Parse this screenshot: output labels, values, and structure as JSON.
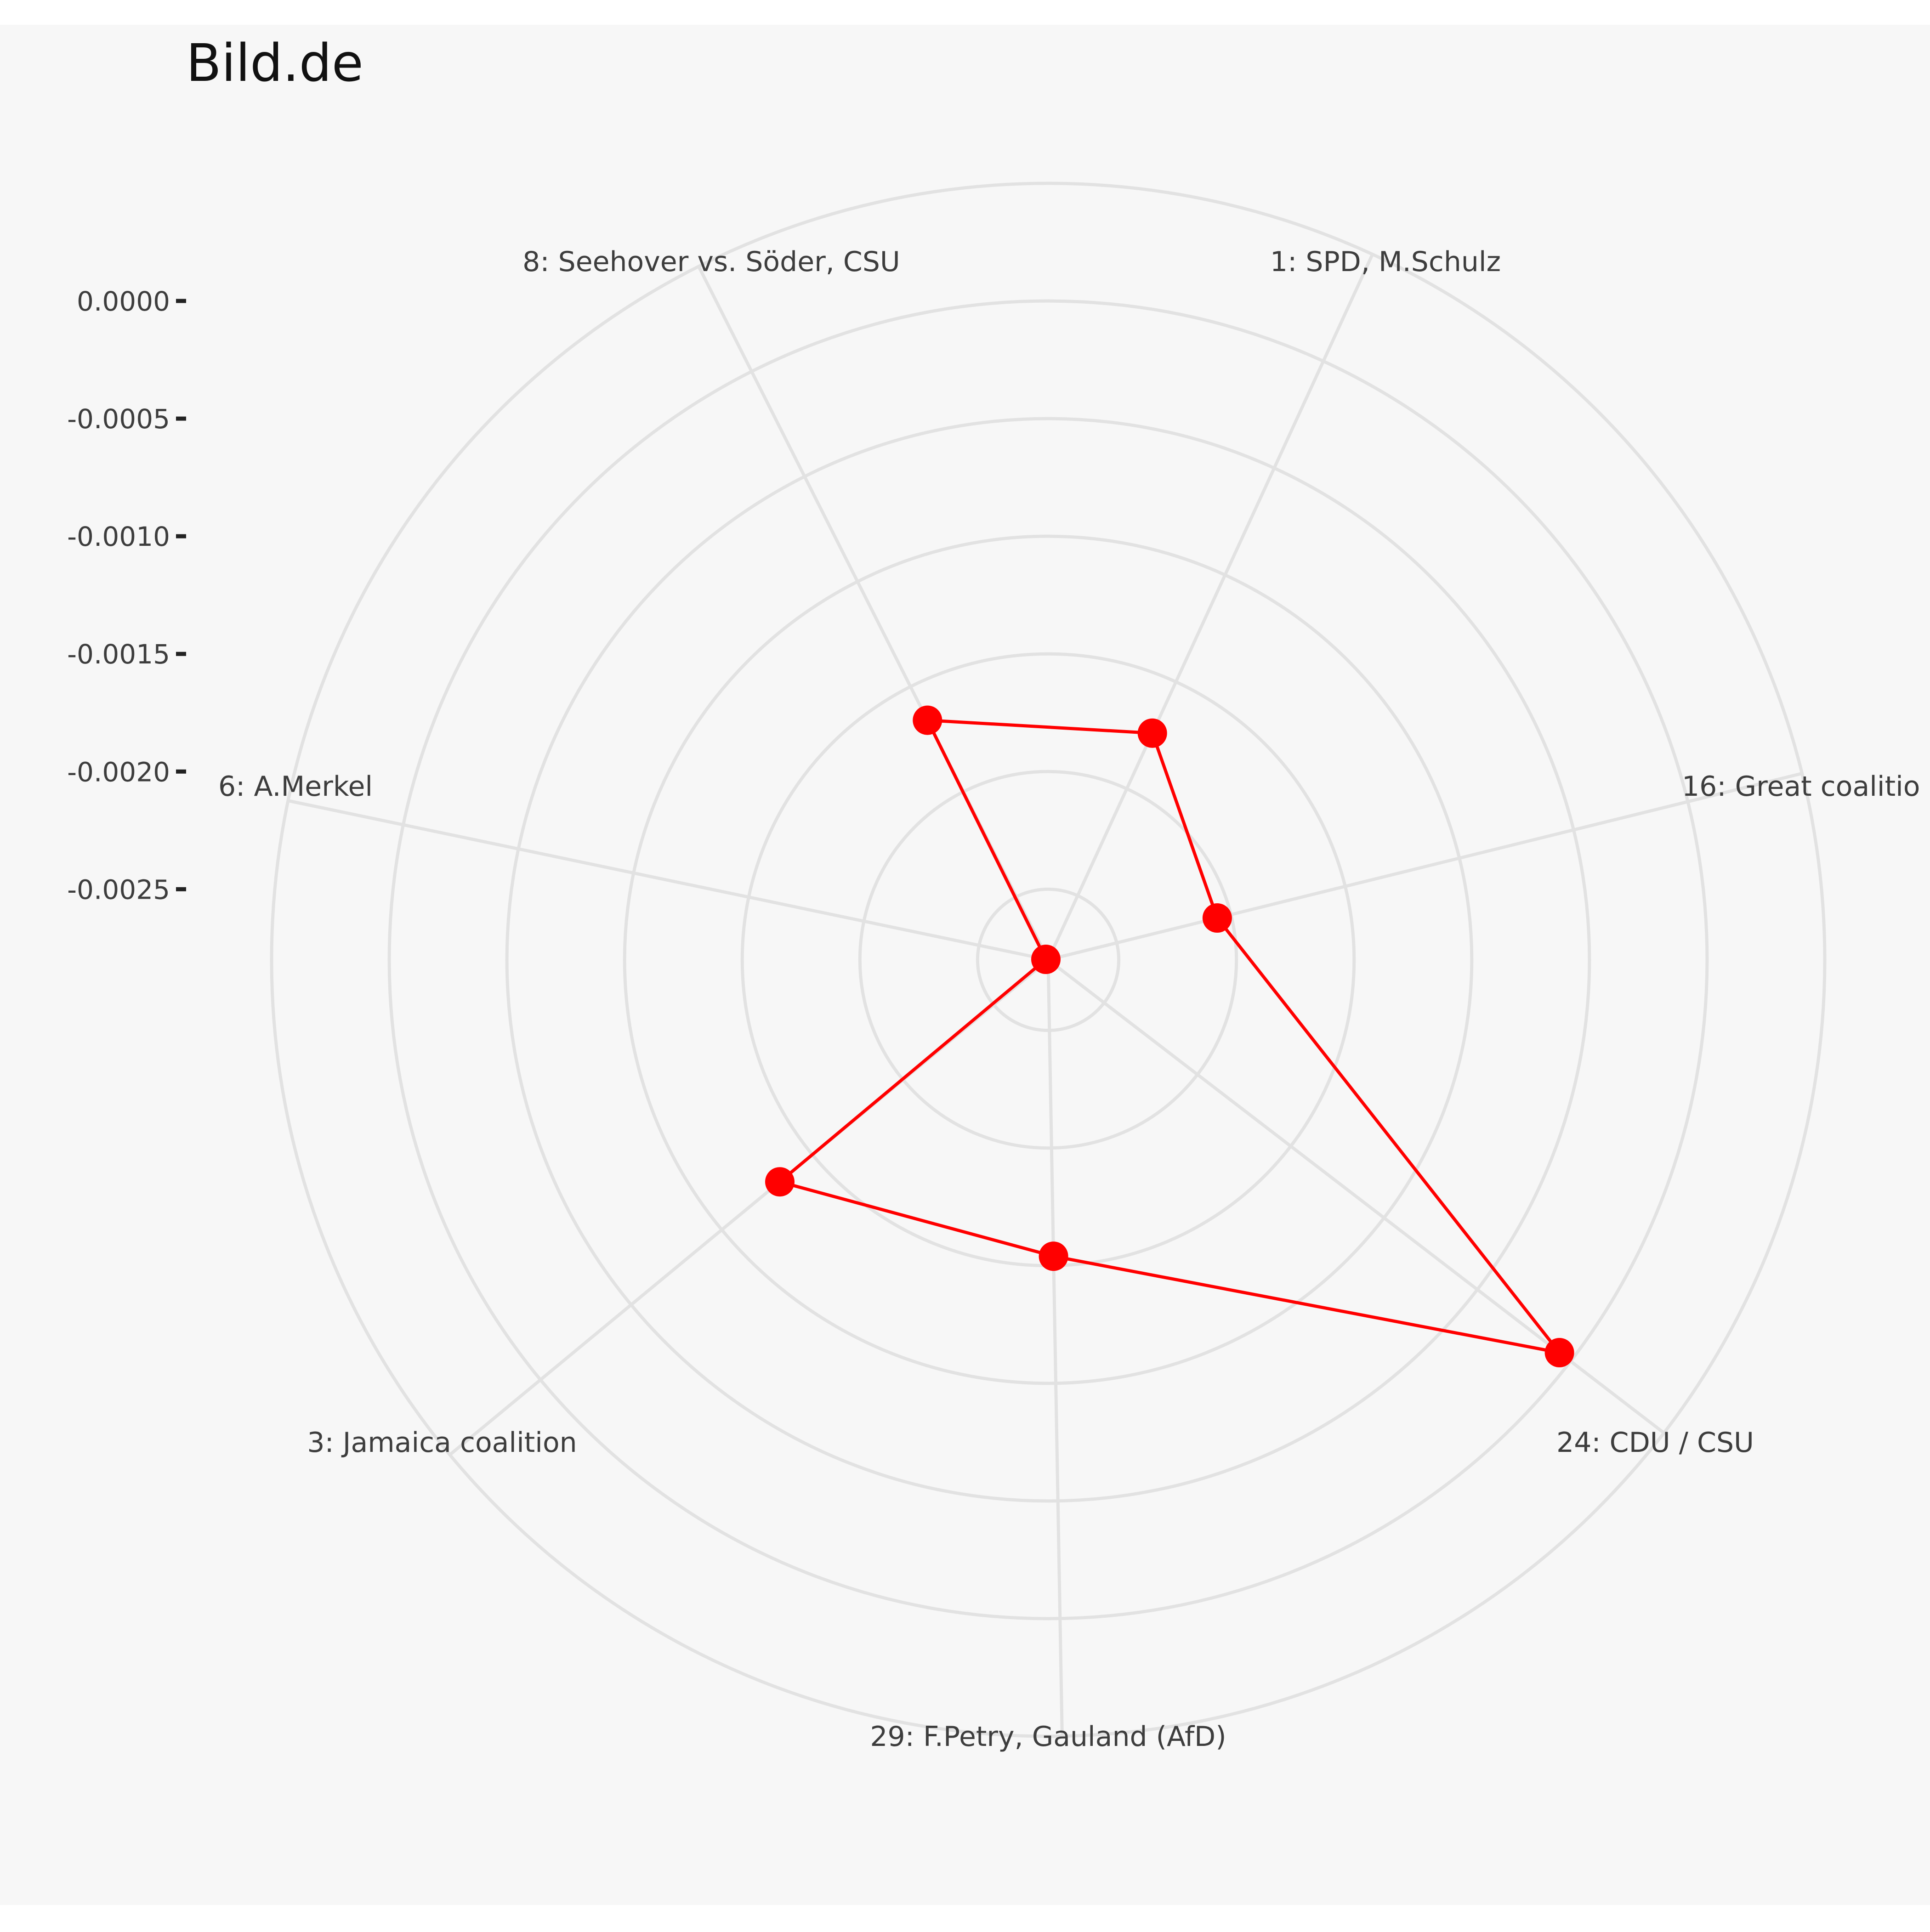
{
  "chart_data": {
    "type": "radar",
    "title": "Bild.de",
    "categories": [
      "1: SPD, M.Schulz",
      "16: Great coalitio",
      "24: CDU / CSU",
      "29: F.Petry, Gauland (AfD)",
      "3: Jamaica coalition",
      "6: A.Merkel",
      "8: Seehover vs. Söder, CSU"
    ],
    "series": [
      {
        "color": "#ff0000",
        "values": [
          -0.00174,
          -0.00206,
          -6e-05,
          -0.00154,
          -0.00132,
          -0.00279,
          -0.00166
        ]
      }
    ],
    "r_axis": {
      "ticks": [
        0.0,
        -0.0005,
        -0.001,
        -0.0015,
        -0.002,
        -0.0025
      ],
      "tick_labels": [
        "0.0000",
        "-0.0005",
        "-0.0010",
        "-0.0015",
        "-0.0020",
        "-0.0025"
      ],
      "range": [
        -0.0028,
        0.0005
      ]
    },
    "grid": true,
    "legend": "none"
  }
}
